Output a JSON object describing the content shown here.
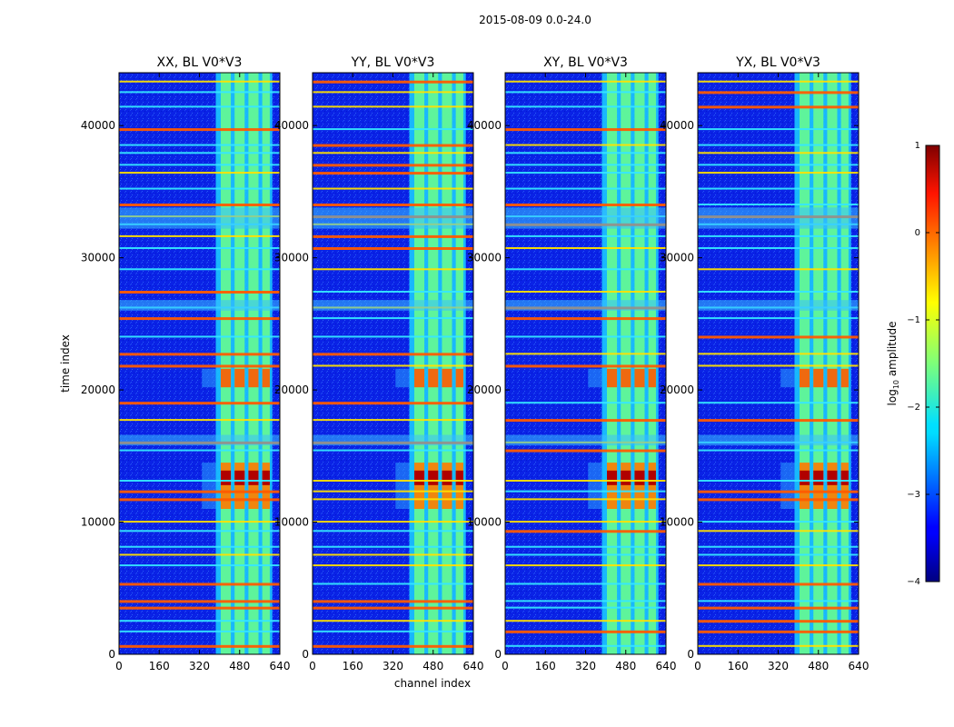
{
  "figure": {
    "suptitle": "2015-08-09 0.0-24.0",
    "xlabel": "channel index",
    "ylabel": "time index"
  },
  "chart_data": {
    "type": "heatmap",
    "x_range": [
      0,
      640
    ],
    "y_range": [
      0,
      44000
    ],
    "x_ticks": [
      "0",
      "160",
      "320",
      "480",
      "640"
    ],
    "x_tick_values": [
      0,
      160,
      320,
      480,
      640
    ],
    "y_ticks": [
      "0",
      "10000",
      "20000",
      "30000",
      "40000"
    ],
    "y_tick_values": [
      0,
      10000,
      20000,
      30000,
      40000
    ],
    "panels": [
      {
        "title": "XX, BL V0*V3",
        "key": "xx"
      },
      {
        "title": "YY, BL V0*V3",
        "key": "yy"
      },
      {
        "title": "XY, BL V0*V3",
        "key": "xy"
      },
      {
        "title": "YX, BL V0*V3",
        "key": "yx"
      }
    ],
    "colorbar": {
      "label": "log",
      "label_sub": "10",
      "label_suffix": " amplitude",
      "range": [
        -4,
        1
      ],
      "ticks": [
        "1",
        "0",
        "−1",
        "−2",
        "−3",
        "−4"
      ],
      "tick_values": [
        1,
        0,
        -1,
        -2,
        -3,
        -4
      ],
      "colormap": "jet"
    },
    "band_channels": [
      405,
      445,
      460,
      500,
      515,
      555,
      570,
      600
    ],
    "hot_time_ranges": [
      [
        11000,
        14500
      ],
      [
        20200,
        21600
      ]
    ],
    "rfi_rows_time": [
      700,
      1800,
      2600,
      3600,
      4100,
      5400,
      6800,
      7600,
      8200,
      9400,
      10100,
      11800,
      12400,
      13200,
      15500,
      16100,
      17800,
      19100,
      21900,
      22800,
      24100,
      25500,
      26300,
      27500,
      29200,
      30800,
      31700,
      32600,
      33200,
      34100,
      35300,
      36500,
      37100,
      38000,
      38600,
      39800,
      41500,
      42600,
      43400
    ]
  }
}
